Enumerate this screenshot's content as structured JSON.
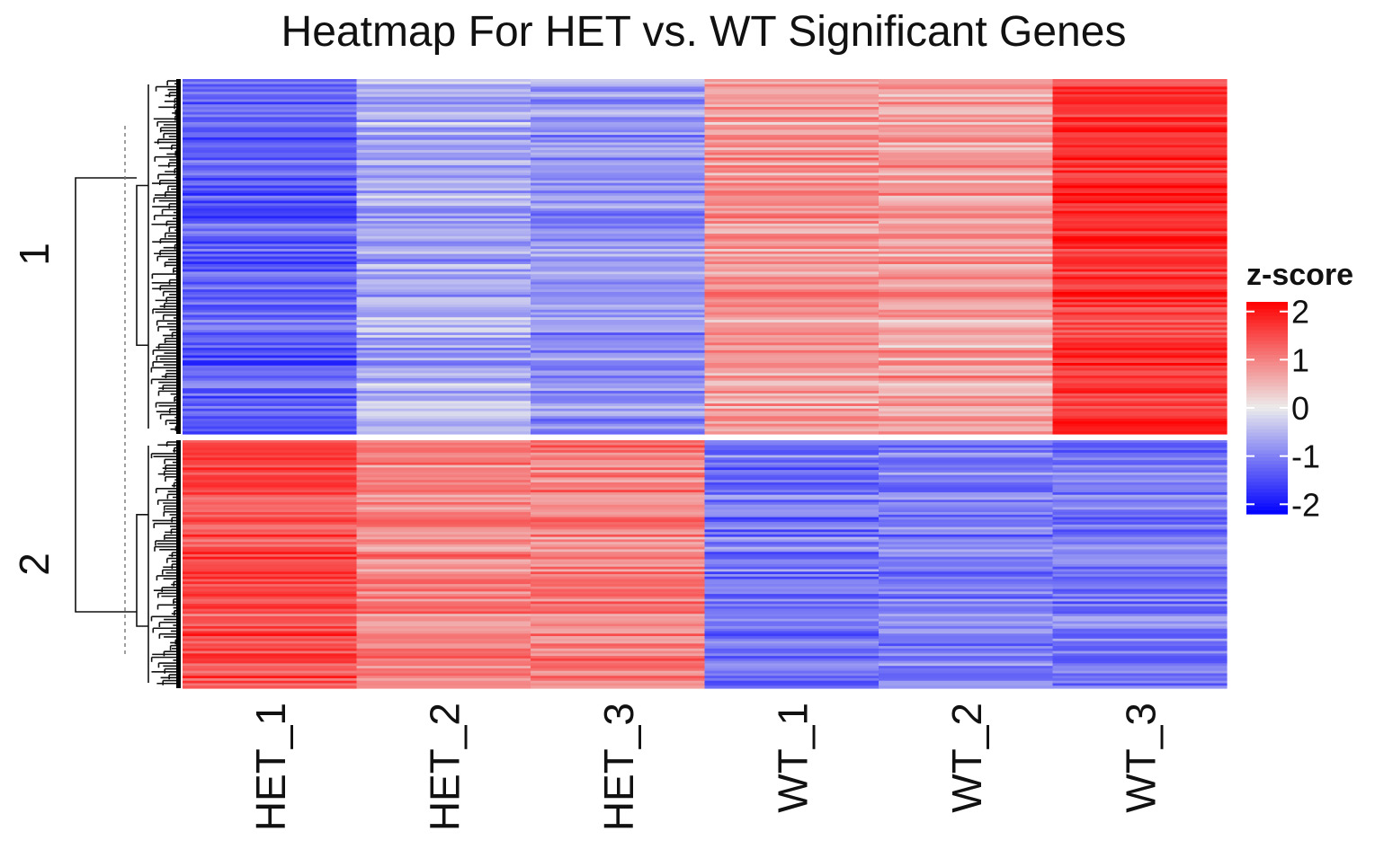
{
  "chart_data": {
    "type": "heatmap",
    "title": "Heatmap For HET vs. WT Significant Genes",
    "columns": [
      "HET_1",
      "HET_2",
      "HET_3",
      "WT_1",
      "WT_2",
      "WT_3"
    ],
    "row_clusters": [
      {
        "label": "1",
        "n_rows": 140,
        "typical_values": {
          "HET_1": -1.3,
          "HET_2": -0.6,
          "HET_3": -0.8,
          "WT_1": 0.8,
          "WT_2": 0.7,
          "WT_3": 1.7
        }
      },
      {
        "label": "2",
        "n_rows": 100,
        "typical_values": {
          "HET_1": 1.5,
          "HET_2": 1.0,
          "HET_3": 1.0,
          "WT_1": -1.1,
          "WT_2": -1.0,
          "WT_3": -1.1
        }
      }
    ],
    "legend": {
      "title": "z-score",
      "ticks": [
        2,
        1,
        0,
        -1,
        -2
      ],
      "range": [
        -2.2,
        2.2
      ],
      "colors": {
        "low": "#0000ff",
        "mid": "#ececec",
        "high": "#ff0000"
      }
    },
    "row_dendrogram": true
  }
}
